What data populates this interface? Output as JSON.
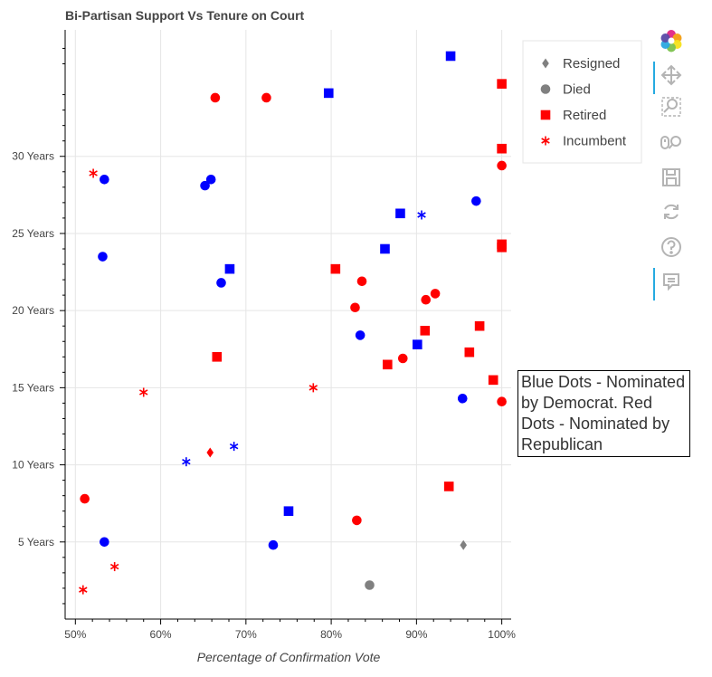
{
  "chart_data": {
    "type": "scatter",
    "title": "Bi-Partisan Support Vs Tenure on Court",
    "xlabel": "Percentage of Confirmation Vote",
    "ylabel": "",
    "xlim": [
      48.8,
      101.1
    ],
    "ylim": [
      0,
      38.2
    ],
    "grid": true,
    "legend_position": "top-right",
    "x_ticks": [
      {
        "value": 50,
        "label": "50%"
      },
      {
        "value": 60,
        "label": "60%"
      },
      {
        "value": 70,
        "label": "70%"
      },
      {
        "value": 80,
        "label": "80%"
      },
      {
        "value": 90,
        "label": "90%"
      },
      {
        "value": 100,
        "label": "100%"
      }
    ],
    "y_ticks": [
      {
        "value": 5,
        "label": "5 Years"
      },
      {
        "value": 10,
        "label": "10 Years"
      },
      {
        "value": 15,
        "label": "15 Years"
      },
      {
        "value": 20,
        "label": "20 Years"
      },
      {
        "value": 25,
        "label": "25 Years"
      },
      {
        "value": 30,
        "label": "30 Years"
      }
    ],
    "series": [
      {
        "name": "Resigned",
        "marker": "diamond",
        "legend_color": "#808080",
        "points": [
          {
            "x": 95.5,
            "y": 4.8,
            "color": "#808080"
          },
          {
            "x": 65.8,
            "y": 10.8,
            "color": "#ff0000"
          }
        ]
      },
      {
        "name": "Died",
        "marker": "circle",
        "legend_color": "#808080",
        "points": [
          {
            "x": 84.5,
            "y": 2.2,
            "color": "#808080"
          },
          {
            "x": 53.4,
            "y": 28.5,
            "color": "#0000ff"
          },
          {
            "x": 65.2,
            "y": 28.1,
            "color": "#0000ff"
          },
          {
            "x": 65.9,
            "y": 28.5,
            "color": "#0000ff"
          },
          {
            "x": 53.2,
            "y": 23.5,
            "color": "#0000ff"
          },
          {
            "x": 67.1,
            "y": 21.8,
            "color": "#0000ff"
          },
          {
            "x": 83.4,
            "y": 18.4,
            "color": "#0000ff"
          },
          {
            "x": 95.4,
            "y": 14.3,
            "color": "#0000ff"
          },
          {
            "x": 53.4,
            "y": 5.0,
            "color": "#0000ff"
          },
          {
            "x": 73.2,
            "y": 4.8,
            "color": "#0000ff"
          },
          {
            "x": 97.0,
            "y": 27.1,
            "color": "#0000ff"
          },
          {
            "x": 66.4,
            "y": 33.8,
            "color": "#ff0000"
          },
          {
            "x": 72.4,
            "y": 33.8,
            "color": "#ff0000"
          },
          {
            "x": 100.0,
            "y": 29.4,
            "color": "#ff0000"
          },
          {
            "x": 83.6,
            "y": 21.9,
            "color": "#ff0000"
          },
          {
            "x": 82.8,
            "y": 20.2,
            "color": "#ff0000"
          },
          {
            "x": 91.1,
            "y": 20.7,
            "color": "#ff0000"
          },
          {
            "x": 92.2,
            "y": 21.1,
            "color": "#ff0000"
          },
          {
            "x": 88.4,
            "y": 16.9,
            "color": "#ff0000"
          },
          {
            "x": 100.0,
            "y": 14.1,
            "color": "#ff0000"
          },
          {
            "x": 51.1,
            "y": 7.8,
            "color": "#ff0000"
          },
          {
            "x": 83.0,
            "y": 6.4,
            "color": "#ff0000"
          }
        ]
      },
      {
        "name": "Retired",
        "marker": "square",
        "legend_color": "#ff0000",
        "points": [
          {
            "x": 94.0,
            "y": 36.5,
            "color": "#0000ff"
          },
          {
            "x": 79.7,
            "y": 34.1,
            "color": "#0000ff"
          },
          {
            "x": 88.1,
            "y": 26.3,
            "color": "#0000ff"
          },
          {
            "x": 86.3,
            "y": 24.0,
            "color": "#0000ff"
          },
          {
            "x": 68.1,
            "y": 22.7,
            "color": "#0000ff"
          },
          {
            "x": 90.1,
            "y": 17.8,
            "color": "#0000ff"
          },
          {
            "x": 75.0,
            "y": 7.0,
            "color": "#0000ff"
          },
          {
            "x": 100.0,
            "y": 34.7,
            "color": "#ff0000"
          },
          {
            "x": 100.0,
            "y": 30.5,
            "color": "#ff0000"
          },
          {
            "x": 100.0,
            "y": 24.3,
            "color": "#ff0000"
          },
          {
            "x": 100.0,
            "y": 24.1,
            "color": "#ff0000"
          },
          {
            "x": 80.5,
            "y": 22.7,
            "color": "#ff0000"
          },
          {
            "x": 97.4,
            "y": 19.0,
            "color": "#ff0000"
          },
          {
            "x": 91.0,
            "y": 18.7,
            "color": "#ff0000"
          },
          {
            "x": 96.2,
            "y": 17.3,
            "color": "#ff0000"
          },
          {
            "x": 86.6,
            "y": 16.5,
            "color": "#ff0000"
          },
          {
            "x": 66.6,
            "y": 17.0,
            "color": "#ff0000"
          },
          {
            "x": 99.0,
            "y": 15.5,
            "color": "#ff0000"
          },
          {
            "x": 93.8,
            "y": 8.6,
            "color": "#ff0000"
          }
        ]
      },
      {
        "name": "Incumbent",
        "marker": "asterisk",
        "legend_color": "#ff0000",
        "points": [
          {
            "x": 90.6,
            "y": 26.2,
            "color": "#0000ff"
          },
          {
            "x": 68.6,
            "y": 11.2,
            "color": "#0000ff"
          },
          {
            "x": 63.0,
            "y": 10.2,
            "color": "#0000ff"
          },
          {
            "x": 52.1,
            "y": 28.9,
            "color": "#ff0000"
          },
          {
            "x": 58.0,
            "y": 14.7,
            "color": "#ff0000"
          },
          {
            "x": 77.9,
            "y": 15.0,
            "color": "#ff0000"
          },
          {
            "x": 54.6,
            "y": 3.4,
            "color": "#ff0000"
          },
          {
            "x": 50.9,
            "y": 1.9,
            "color": "#ff0000"
          }
        ]
      }
    ]
  },
  "note": "Blue Dots - Nominated by Democrat. Red Dots - Nominated by Republican",
  "toolbar": {
    "tools": [
      {
        "icon": "bokeh-logo-icon",
        "interactable": false
      },
      {
        "icon": "pan-icon",
        "interactable": true,
        "active": true
      },
      {
        "icon": "box-zoom-icon",
        "interactable": true
      },
      {
        "icon": "wheel-zoom-icon",
        "interactable": true
      },
      {
        "icon": "save-icon",
        "interactable": true
      },
      {
        "icon": "reset-icon",
        "interactable": true
      },
      {
        "icon": "help-icon",
        "interactable": true
      },
      {
        "icon": "hover-icon",
        "interactable": true,
        "active": true
      }
    ]
  }
}
